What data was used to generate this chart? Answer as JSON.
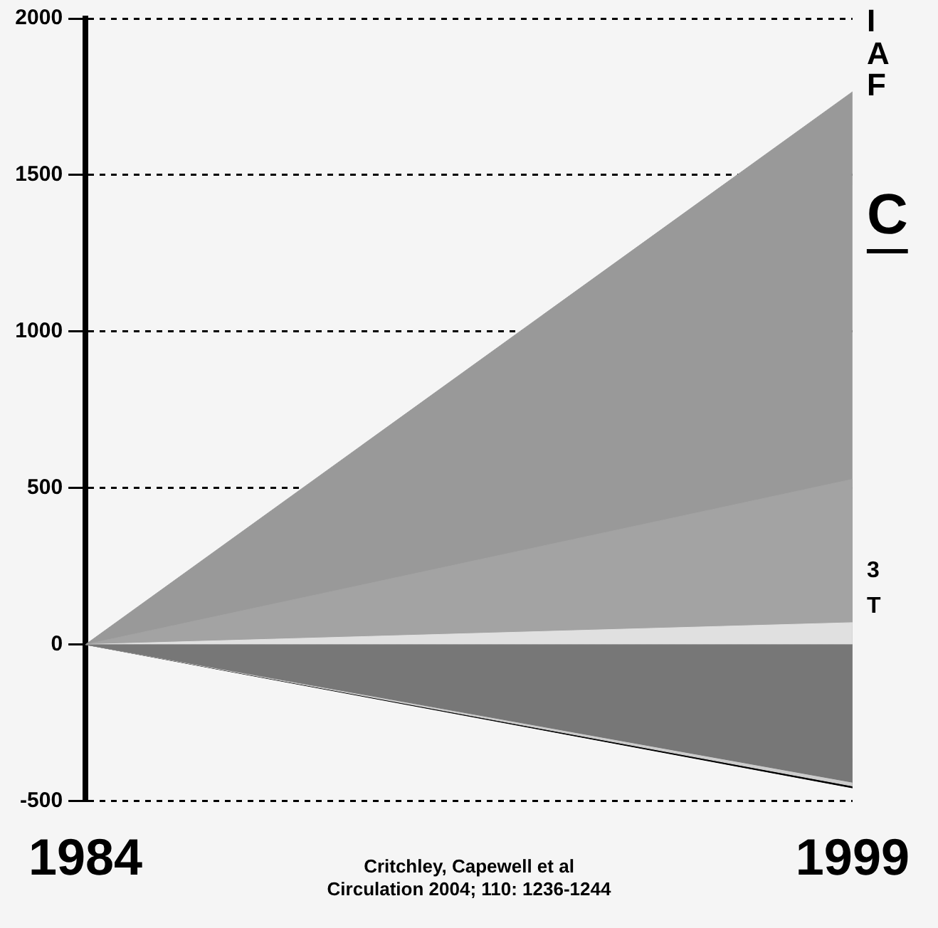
{
  "chart_data": {
    "type": "area",
    "x": [
      1984,
      1999
    ],
    "xlim": [
      1984,
      1999
    ],
    "xticks": [
      1984,
      1999
    ],
    "ylim": [
      -500,
      2000
    ],
    "yticks": [
      -500,
      0,
      500,
      1000,
      1500,
      2000
    ],
    "grid": "y",
    "series": [
      {
        "color": "#999999",
        "values": [
          0,
          1766
        ]
      },
      {
        "color": "#a3a3a3",
        "values": [
          0,
          528
        ]
      },
      {
        "color": "#e0e0e0",
        "values": [
          0,
          70
        ]
      },
      {
        "color": "#000000",
        "values": [
          0,
          -458
        ]
      },
      {
        "color": "#cccccc",
        "values": [
          0,
          -452
        ]
      },
      {
        "color": "#777777",
        "values": [
          0,
          -440
        ]
      }
    ],
    "annotations": [
      "I",
      "A",
      "F",
      "C",
      "3",
      "T",
      "Critchley, Capewell et al",
      "Circulation 2004; 110: 1236-1244"
    ]
  }
}
